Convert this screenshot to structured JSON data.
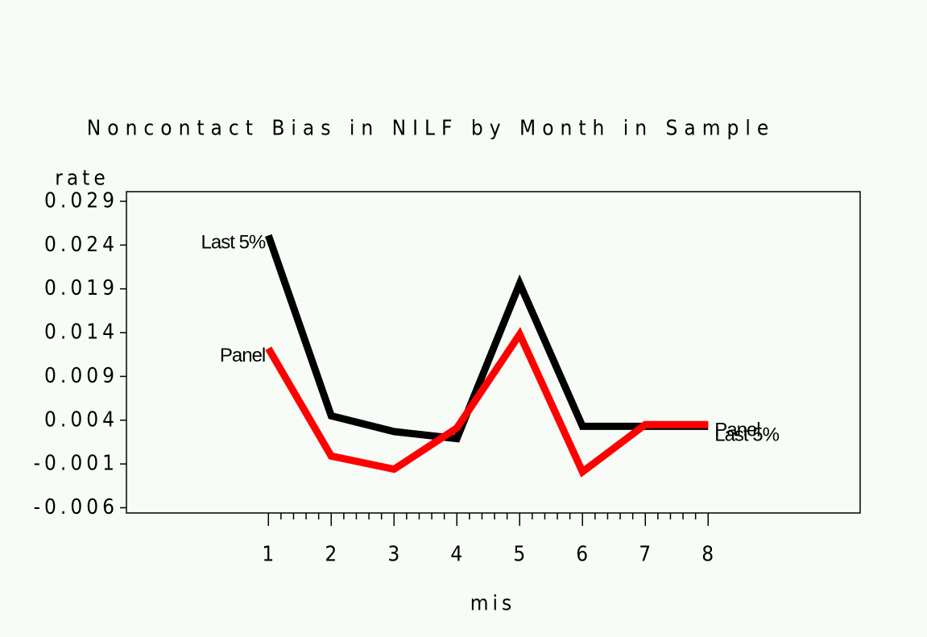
{
  "chart_data": {
    "type": "line",
    "title": "Noncontact Bias in NILF by Month in Sample",
    "y_label": "rate",
    "x_label": "mis",
    "x": [
      1,
      2,
      3,
      4,
      5,
      6,
      7,
      8
    ],
    "series": [
      {
        "name": "Last 5%",
        "color": "#000000",
        "values": [
          0.0251,
          0.0045,
          0.0027,
          0.0019,
          0.0196,
          0.0033,
          0.0033,
          0.0033
        ]
      },
      {
        "name": "Panel",
        "color": "#ff0000",
        "values": [
          0.0122,
          -0.0001,
          -0.0016,
          0.0031,
          0.0138,
          -0.0019,
          0.0035,
          0.0035
        ]
      }
    ],
    "xlim": [
      -1.26,
      10.42
    ],
    "xticks": [
      1,
      2,
      3,
      4,
      5,
      6,
      7,
      8
    ],
    "ylim": [
      -0.0066,
      0.0301
    ],
    "yticks": [
      -0.006,
      -0.001,
      0.004,
      0.009,
      0.014,
      0.019,
      0.024,
      0.029
    ]
  }
}
